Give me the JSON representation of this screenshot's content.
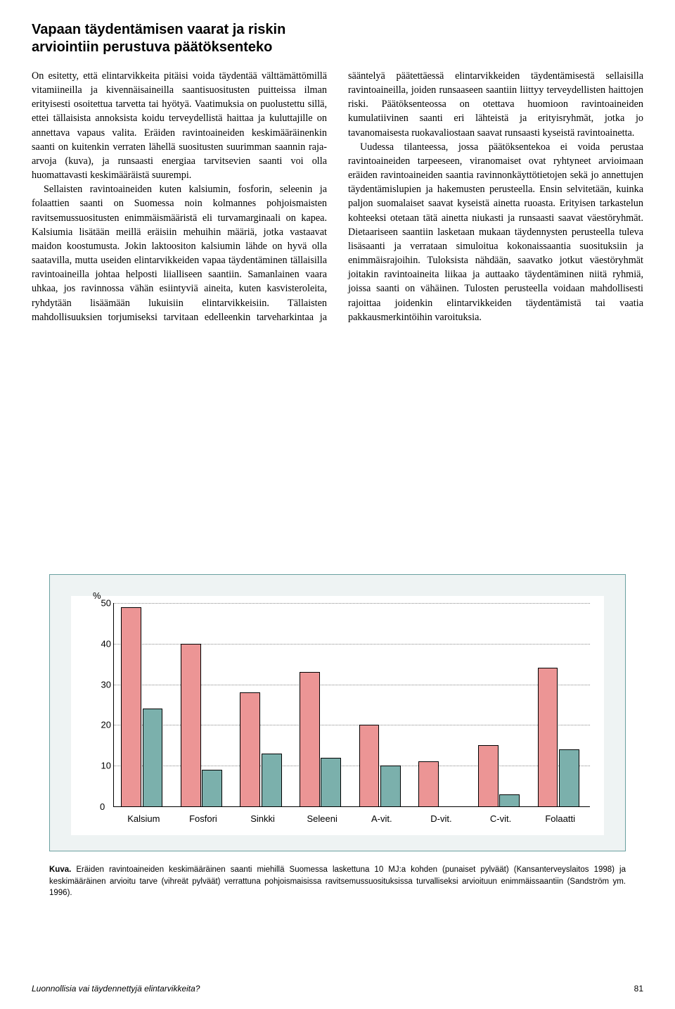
{
  "headline": "Vapaan täydentämisen vaarat ja riskin arviointiin perustuva päätöksenteko",
  "body_paragraphs": [
    "On esitetty, että elintarvikkeita pitäisi voida täydentää välttämättömillä vitamiineilla ja kivennäisaineilla saantisuositusten puitteissa ilman erityisesti osoitettua tarvetta tai hyötyä. Vaatimuksia on puolustettu sillä, ettei tällaisista annoksista koidu terveydellistä haittaa ja kuluttajille on annettava vapaus valita. Eräiden ravintoaineiden keskimääräinenkin saanti on kuitenkin verraten lähellä suositusten suurimman saannin raja-arvoja (kuva), ja runsaasti energiaa tarvitsevien saanti voi olla huomattavasti keskimääräistä suurempi.",
    "Sellaisten ravintoaineiden kuten kalsiumin, fosforin, seleenin ja folaattien saanti on Suomessa noin kolmannes pohjoismaisten ravitsemussuositusten enimmäismääristä eli turvamarginaali on kapea. Kalsiumia lisätään meillä eräisiin mehuihin määriä, jotka vastaavat maidon koostumusta. Jokin laktoositon kalsiumin lähde on hyvä olla saatavilla, mutta useiden elintarvikkeiden vapaa täydentäminen tällaisilla ravintoaineilla johtaa helposti liialliseen saantiin. Samanlainen vaara uhkaa, jos ravinnossa vähän esiintyviä aineita, kuten kasvisteroleita, ryhdytään lisäämään lukuisiin elintarvikkeisiin. Tällaisten mahdollisuuksien torjumiseksi tarvitaan edelleenkin tarveharkintaa ja sääntelyä päätettäessä elintarvikkeiden täydentämisestä sellaisilla ravintoaineilla, joiden runsaaseen saantiin liittyy terveydellisten haittojen riski. Päätöksenteossa on otettava huomioon ravintoaineiden kumulatiivinen saanti eri lähteistä ja erityisryhmät, jotka jo tavanomaisesta ruokavaliostaan saavat runsaasti kyseistä ravintoainetta.",
    "Uudessa tilanteessa, jossa päätöksentekoa ei voida perustaa ravintoaineiden tarpeeseen, viranomaiset ovat ryhtyneet arvioimaan eräiden ravintoaineiden saantia ravinnonkäyttötietojen sekä jo annettujen täydentämislupien ja hakemusten perusteella. Ensin selvitetään, kuinka paljon suomalaiset saavat kyseistä ainetta ruoasta. Erityisen tarkastelun kohteeksi otetaan tätä ainetta niukasti ja runsaasti saavat väestöryhmät. Dietaariseen saantiin lasketaan mukaan täydennysten perusteella tuleva lisäsaanti ja verrataan simuloitua kokonaissaantia suosituksiin ja enimmäisrajoihin. Tuloksista nähdään, saavatko jotkut väestöryhmät joitakin ravintoaineita liikaa ja auttaako täydentäminen niitä ryhmiä, joissa saanti on vähäinen. Tulosten perusteella voidaan mahdollisesti rajoittaa joidenkin elintarvikkeiden täydentämistä tai vaatia pakkausmerkintöihin varoituksia."
  ],
  "chart": {
    "type": "bar",
    "y_unit": "%",
    "ylim": [
      0,
      50
    ],
    "ytick_step": 10,
    "grid_color": "#8a8a8a",
    "background_color": "#ffffff",
    "panel_background": "#eef3f3",
    "panel_border": "#6aa0a0",
    "categories": [
      "Kalsium",
      "Fosfori",
      "Sinkki",
      "Seleeni",
      "A-vit.",
      "D-vit.",
      "C-vit.",
      "Folaatti"
    ],
    "series": [
      {
        "name": "punaiset",
        "color": "#ec9595",
        "border": "#000000",
        "values": [
          49,
          40,
          28,
          33,
          20,
          11,
          15,
          34
        ]
      },
      {
        "name": "vihreät",
        "color": "#7bb0ac",
        "border": "#000000",
        "values": [
          24,
          9,
          13,
          12,
          10,
          0,
          3,
          14
        ]
      }
    ],
    "bar_width": 0.34,
    "label_fontsize": 13,
    "font_family": "Arial"
  },
  "caption_lead": "Kuva.",
  "caption_text": " Eräiden ravintoaineiden keskimääräinen saanti miehillä Suomessa laskettuna 10 MJ:a kohden (punaiset pylväät) (Kansanterveyslaitos 1998) ja keskimääräinen arvioitu tarve (vihreät pylväät) verrattuna pohjoismaisissa ravitsemussuosituksissa turvalliseksi arvioituun enimmäissaantiin (Sandström ym. 1996).",
  "footer_title": "Luonnollisia vai täydennettyjä elintarvikkeita?",
  "page_number": "81"
}
